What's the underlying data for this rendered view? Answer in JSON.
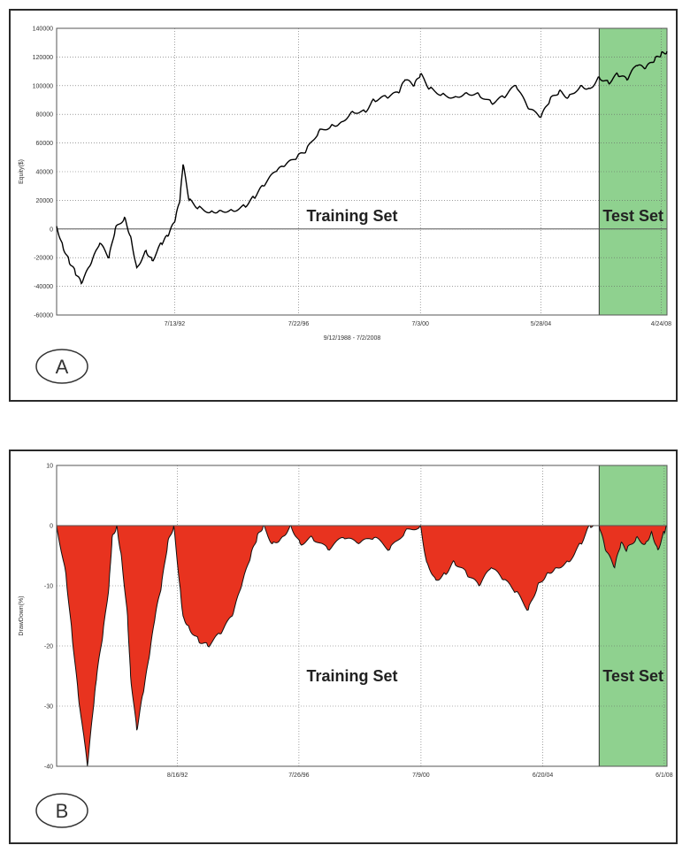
{
  "chart_data": [
    {
      "type": "line",
      "panel_label": "A",
      "ylabel": "Equity($)",
      "xlabel": "9/12/1988 - 7/2/2008",
      "ylim": [
        -60000,
        140000
      ],
      "yticks": [
        140000,
        120000,
        100000,
        80000,
        60000,
        40000,
        20000,
        0,
        -20000,
        -40000,
        -60000
      ],
      "xlim": [
        1988.7,
        2008.5
      ],
      "xticks": [
        {
          "label": "7/13/92",
          "x": 1992.53
        },
        {
          "label": "7/22/96",
          "x": 1996.55
        },
        {
          "label": "7/3/00",
          "x": 2000.5
        },
        {
          "label": "5/28/04",
          "x": 2004.41
        },
        {
          "label": "4/24/08",
          "x": 2008.31
        }
      ],
      "grid": true,
      "regions": [
        {
          "label": "Training Set",
          "x_start": 1988.7,
          "x_end": 2006.3,
          "color": ""
        },
        {
          "label": "Test Set",
          "x_start": 2006.3,
          "x_end": 2008.5,
          "color": "#8fd18f"
        }
      ],
      "series": [
        {
          "color": "#000000",
          "x": [
            1988.7,
            1988.9,
            1989.1,
            1989.3,
            1989.5,
            1989.8,
            1990.1,
            1990.4,
            1990.6,
            1990.9,
            1991.1,
            1991.3,
            1991.6,
            1991.8,
            1992.1,
            1992.3,
            1992.53,
            1992.7,
            1992.8,
            1993.0,
            1993.3,
            1993.7,
            1994.0,
            1994.4,
            1994.8,
            1995.1,
            1995.4,
            1995.8,
            1996.1,
            1996.5,
            1996.8,
            1997.2,
            1997.6,
            1997.9,
            1998.3,
            1998.7,
            1999.0,
            1999.4,
            1999.8,
            2000.0,
            2000.3,
            2000.5,
            2000.8,
            2001.2,
            2001.6,
            2002.0,
            2002.4,
            2002.8,
            2003.2,
            2003.6,
            2004.0,
            2004.41,
            2004.7,
            2005.0,
            2005.3,
            2005.7,
            2006.0,
            2006.3,
            2006.6,
            2006.9,
            2007.2,
            2007.5,
            2007.8,
            2008.1,
            2008.31,
            2008.5
          ],
          "y": [
            2000,
            -12000,
            -22000,
            -30000,
            -38000,
            -25000,
            -10000,
            -20000,
            0,
            8000,
            -5000,
            -27000,
            -15000,
            -22000,
            -10000,
            -5000,
            5000,
            20000,
            45000,
            20000,
            15000,
            12000,
            13000,
            13000,
            16000,
            22000,
            30000,
            40000,
            44000,
            50000,
            55000,
            68000,
            72000,
            74000,
            82000,
            82000,
            90000,
            92000,
            95000,
            104000,
            100000,
            108000,
            98000,
            94000,
            92000,
            95000,
            94000,
            88000,
            92000,
            100000,
            84000,
            78000,
            90000,
            96000,
            92000,
            100000,
            98000,
            106000,
            102000,
            108000,
            104000,
            114000,
            112000,
            118000,
            122000,
            124000
          ]
        }
      ]
    },
    {
      "type": "area",
      "panel_label": "B",
      "ylabel": "DrawDown(%)",
      "xlabel": "",
      "ylim": [
        -40,
        10
      ],
      "yticks": [
        10,
        0,
        -10,
        -20,
        -30,
        -40
      ],
      "xlim": [
        1988.7,
        2008.5
      ],
      "xticks": [
        {
          "label": "8/16/92",
          "x": 1992.62
        },
        {
          "label": "7/26/96",
          "x": 1996.56
        },
        {
          "label": "7/9/00",
          "x": 2000.52
        },
        {
          "label": "6/20/04",
          "x": 2004.47
        },
        {
          "label": "6/1/08",
          "x": 2008.41
        }
      ],
      "grid": true,
      "regions": [
        {
          "label": "Training Set",
          "x_start": 1988.7,
          "x_end": 2006.3,
          "color": ""
        },
        {
          "label": "Test Set",
          "x_start": 2006.3,
          "x_end": 2008.5,
          "color": "#8fd18f"
        }
      ],
      "series": [
        {
          "color": "#e8331f",
          "x": [
            1988.7,
            1989.0,
            1989.2,
            1989.4,
            1989.7,
            1989.9,
            1990.0,
            1990.2,
            1990.4,
            1990.5,
            1990.65,
            1990.8,
            1991.0,
            1991.1,
            1991.3,
            1991.5,
            1991.7,
            1991.9,
            1992.1,
            1992.3,
            1992.5,
            1992.7,
            1992.8,
            1993.0,
            1993.3,
            1993.6,
            1994.0,
            1994.4,
            1994.7,
            1995.0,
            1995.2,
            1995.4,
            1995.7,
            1996.0,
            1996.3,
            1996.6,
            1997.0,
            1997.5,
            1998.0,
            1998.5,
            1999.0,
            1999.5,
            2000.0,
            2000.5,
            2000.7,
            2001.0,
            2001.3,
            2001.6,
            2002.0,
            2002.4,
            2002.8,
            2003.2,
            2003.6,
            2004.0,
            2004.3,
            2004.6,
            2004.9,
            2005.3,
            2005.7,
            2006.0,
            2006.3,
            2006.5,
            2006.8,
            2007.0,
            2007.2,
            2007.5,
            2007.8,
            2008.0,
            2008.2,
            2008.41,
            2008.5
          ],
          "y": [
            0,
            -8,
            -18,
            -28,
            -40,
            -30,
            -25,
            -18,
            -10,
            -2,
            0,
            -5,
            -15,
            -25,
            -34,
            -28,
            -22,
            -15,
            -10,
            -3,
            0,
            -10,
            -15,
            -17,
            -19,
            -20,
            -18,
            -15,
            -10,
            -5,
            -2,
            0,
            -3,
            -2,
            0,
            -3,
            -2,
            -4,
            -2,
            -3,
            -2,
            -4,
            -1,
            0,
            -6,
            -9,
            -8,
            -6,
            -8,
            -10,
            -7,
            -9,
            -11,
            -14,
            -10,
            -8,
            -7,
            -6,
            -3,
            0,
            0,
            -4,
            -7,
            -3,
            -4,
            -2,
            -3,
            -1,
            -4,
            -1,
            0
          ]
        }
      ]
    }
  ]
}
